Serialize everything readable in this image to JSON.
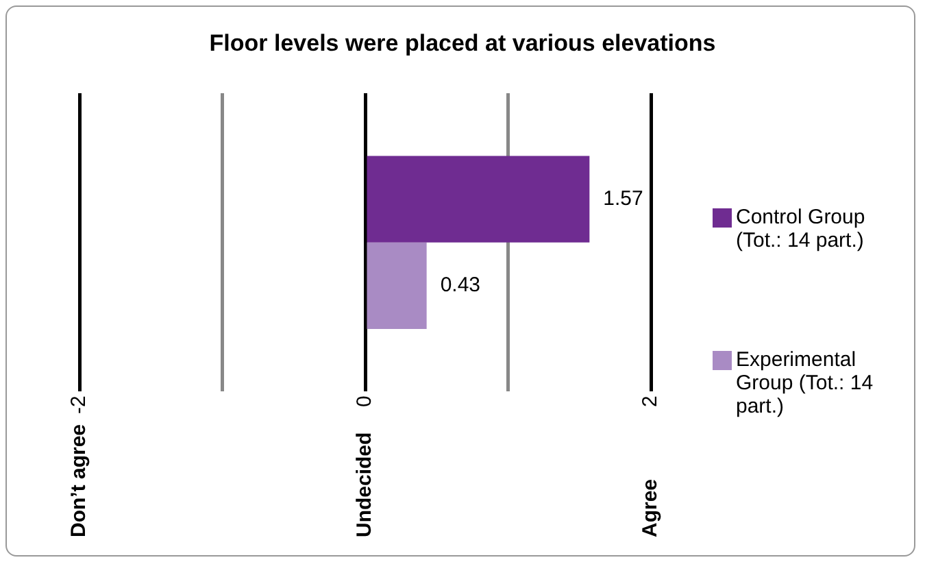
{
  "chart_data": {
    "type": "bar",
    "orientation": "horizontal",
    "title": "Floor levels were placed at various elevations",
    "categories": [
      null
    ],
    "series": [
      {
        "name": "Control Group (Tot.: 14 part.)",
        "color": "#6f2c91",
        "values": [
          1.57
        ]
      },
      {
        "name": "Experimental Group (Tot.: 14 part.)",
        "color": "#a98bc4",
        "values": [
          0.43
        ]
      }
    ],
    "xlim": [
      -2,
      2
    ],
    "xticks": [
      -2,
      {
        "value": -1,
        "label": null
      },
      0,
      {
        "value": 1,
        "label": null
      },
      2
    ],
    "annotations": [
      "Don’t agree",
      "Undecided",
      "Agree"
    ],
    "grid": "x",
    "legend": "right",
    "data_labels": true
  }
}
